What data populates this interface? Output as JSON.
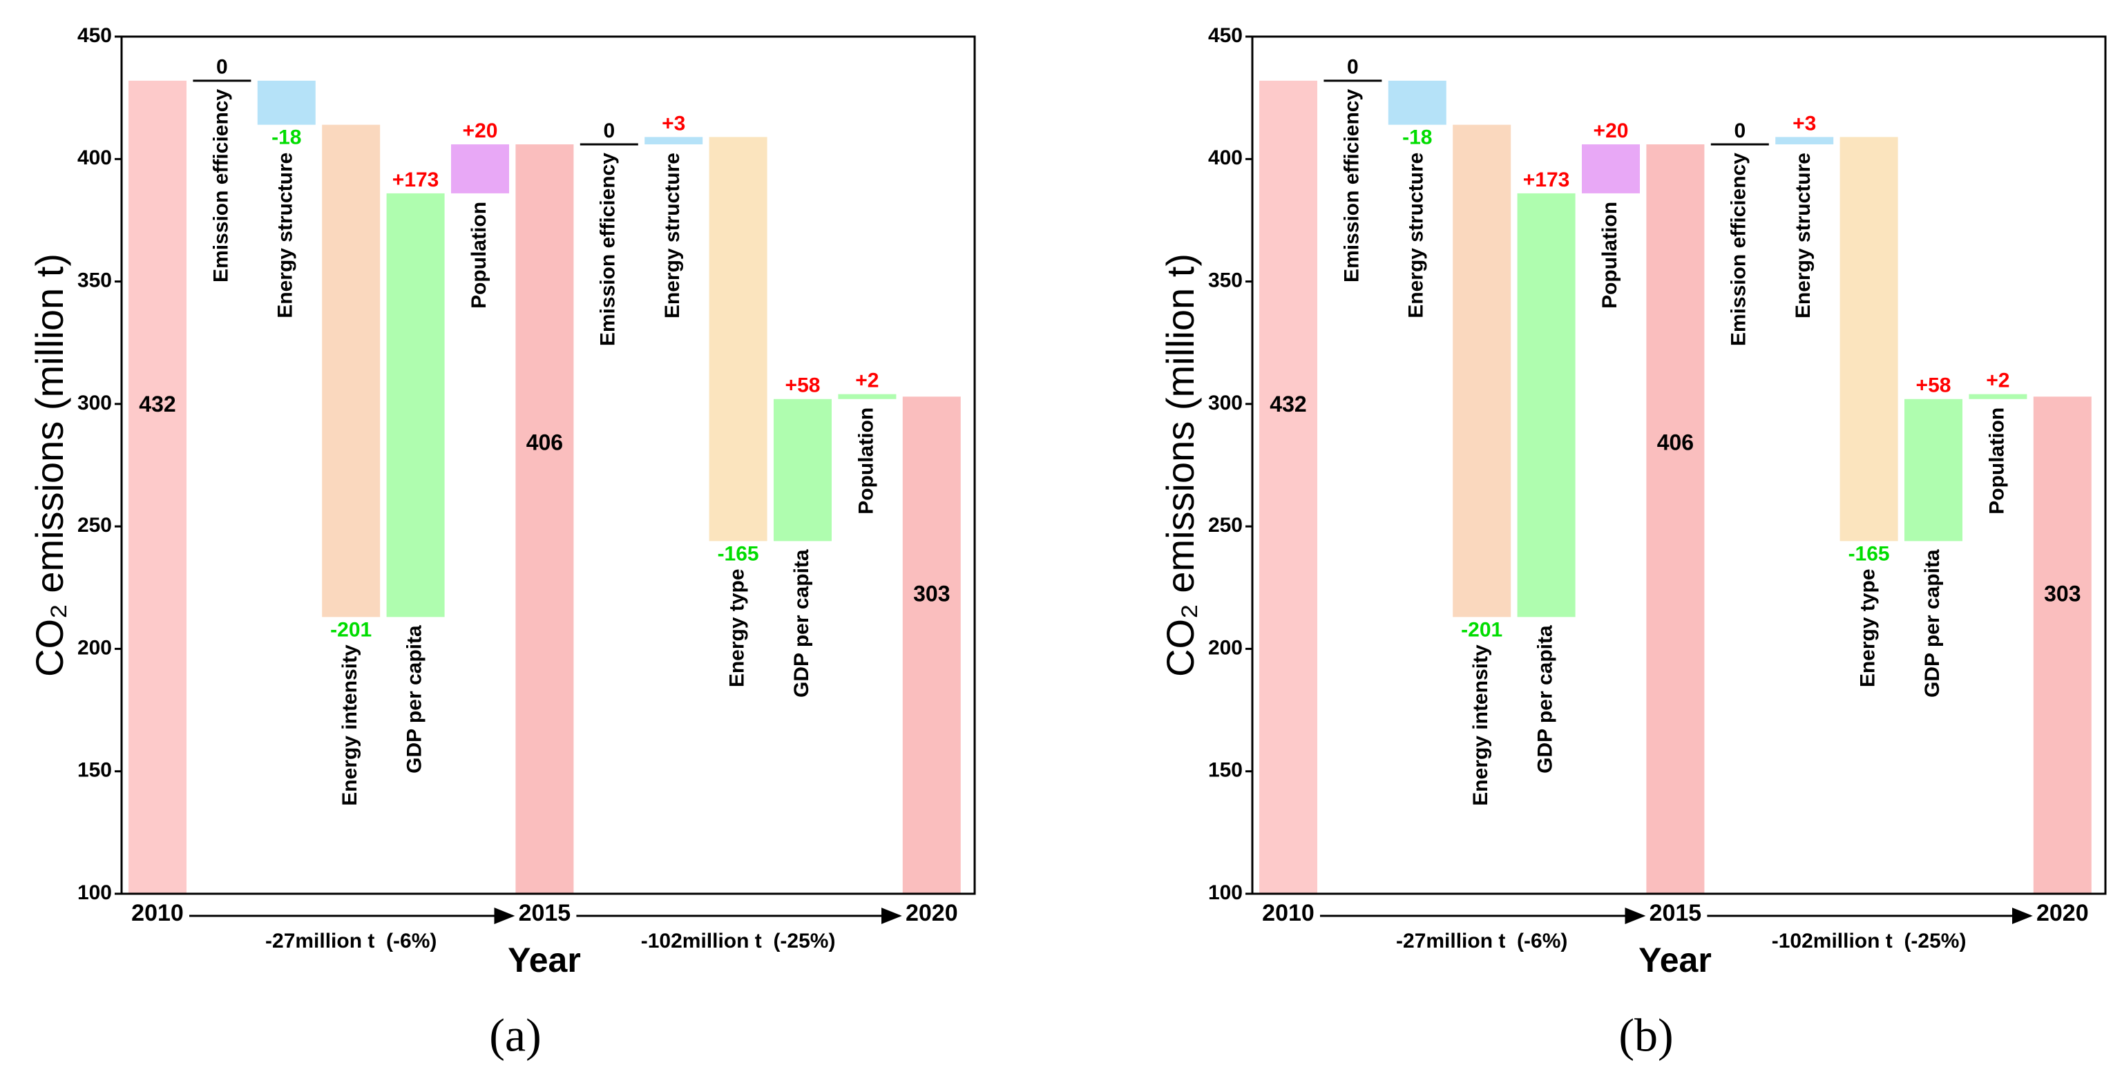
{
  "chart_data": [
    {
      "type": "waterfall",
      "panel": "(a)",
      "ylabel": "CO₂ emissions (million t)",
      "xlabel": "Year",
      "ylim": [
        100,
        450
      ],
      "yticks": [
        100,
        150,
        200,
        250,
        300,
        350,
        400,
        450
      ],
      "label_colors": {
        "positive": "#ff0000",
        "negative": "#00dd00",
        "zero": "#000000"
      },
      "totals": [
        {
          "year": "2010",
          "value": 432,
          "color": "#fdcaca"
        },
        {
          "year": "2015",
          "value": 406,
          "color": "#fabebe"
        },
        {
          "year": "2020",
          "value": 303,
          "color": "#fabebe"
        }
      ],
      "periods": [
        {
          "change": "-27million t  (-6%)",
          "steps": [
            {
              "name": "Emission efficiency",
              "value": 0,
              "color": "#000000"
            },
            {
              "name": "Energy structure",
              "value": -18,
              "color": "#b5e2f8"
            },
            {
              "name": "Energy intensity",
              "value": -201,
              "color": "#fad8be"
            },
            {
              "name": "GDP per capita",
              "value": 173,
              "value_label": "+173",
              "color": "#affdaf"
            },
            {
              "name": "Population",
              "value": 20,
              "value_label": "+20",
              "color": "#e8a8f6"
            }
          ]
        },
        {
          "change": "-102million t  (-25%)",
          "steps": [
            {
              "name": "Emission efficiency",
              "value": 0,
              "color": "#000000"
            },
            {
              "name": "Energy structure",
              "value": 3,
              "value_label": "+3",
              "color": "#b5e2f8"
            },
            {
              "name": "Energy type",
              "value": -165,
              "color": "#fbe4be"
            },
            {
              "name": "GDP per capita",
              "value": 58,
              "value_label": "+58",
              "color": "#affdaf"
            },
            {
              "name": "Population",
              "value": 2,
              "value_label": "+2",
              "color": "#affdaf"
            }
          ]
        }
      ]
    },
    {
      "type": "waterfall",
      "panel": "(b)",
      "ylabel": "CO₂ emissions (million t)",
      "xlabel": "Year",
      "ylim": [
        100,
        450
      ],
      "yticks": [
        100,
        150,
        200,
        250,
        300,
        350,
        400,
        450
      ],
      "label_colors": {
        "positive": "#ff0000",
        "negative": "#00dd00",
        "zero": "#000000"
      },
      "totals": [
        {
          "year": "2010",
          "value": 432,
          "color": "#fdcaca"
        },
        {
          "year": "2015",
          "value": 406,
          "color": "#fabebe"
        },
        {
          "year": "2020",
          "value": 303,
          "color": "#fabebe"
        }
      ],
      "periods": [
        {
          "change": "-27million t  (-6%)",
          "steps": [
            {
              "name": "Emission efficiency",
              "value": 0,
              "color": "#000000"
            },
            {
              "name": "Energy structure",
              "value": -18,
              "color": "#b5e2f8"
            },
            {
              "name": "Energy intensity",
              "value": -201,
              "color": "#fad8be"
            },
            {
              "name": "GDP per capita",
              "value": 173,
              "value_label": "+173",
              "color": "#affdaf"
            },
            {
              "name": "Population",
              "value": 20,
              "value_label": "+20",
              "color": "#e8a8f6"
            }
          ]
        },
        {
          "change": "-102million t  (-25%)",
          "steps": [
            {
              "name": "Emission efficiency",
              "value": 0,
              "color": "#000000"
            },
            {
              "name": "Energy structure",
              "value": 3,
              "value_label": "+3",
              "color": "#b5e2f8"
            },
            {
              "name": "Energy type",
              "value": -165,
              "color": "#fbe4be"
            },
            {
              "name": "GDP per capita",
              "value": 58,
              "value_label": "+58",
              "color": "#affdaf"
            },
            {
              "name": "Population",
              "value": 2,
              "value_label": "+2",
              "color": "#affdaf"
            }
          ]
        }
      ]
    }
  ]
}
